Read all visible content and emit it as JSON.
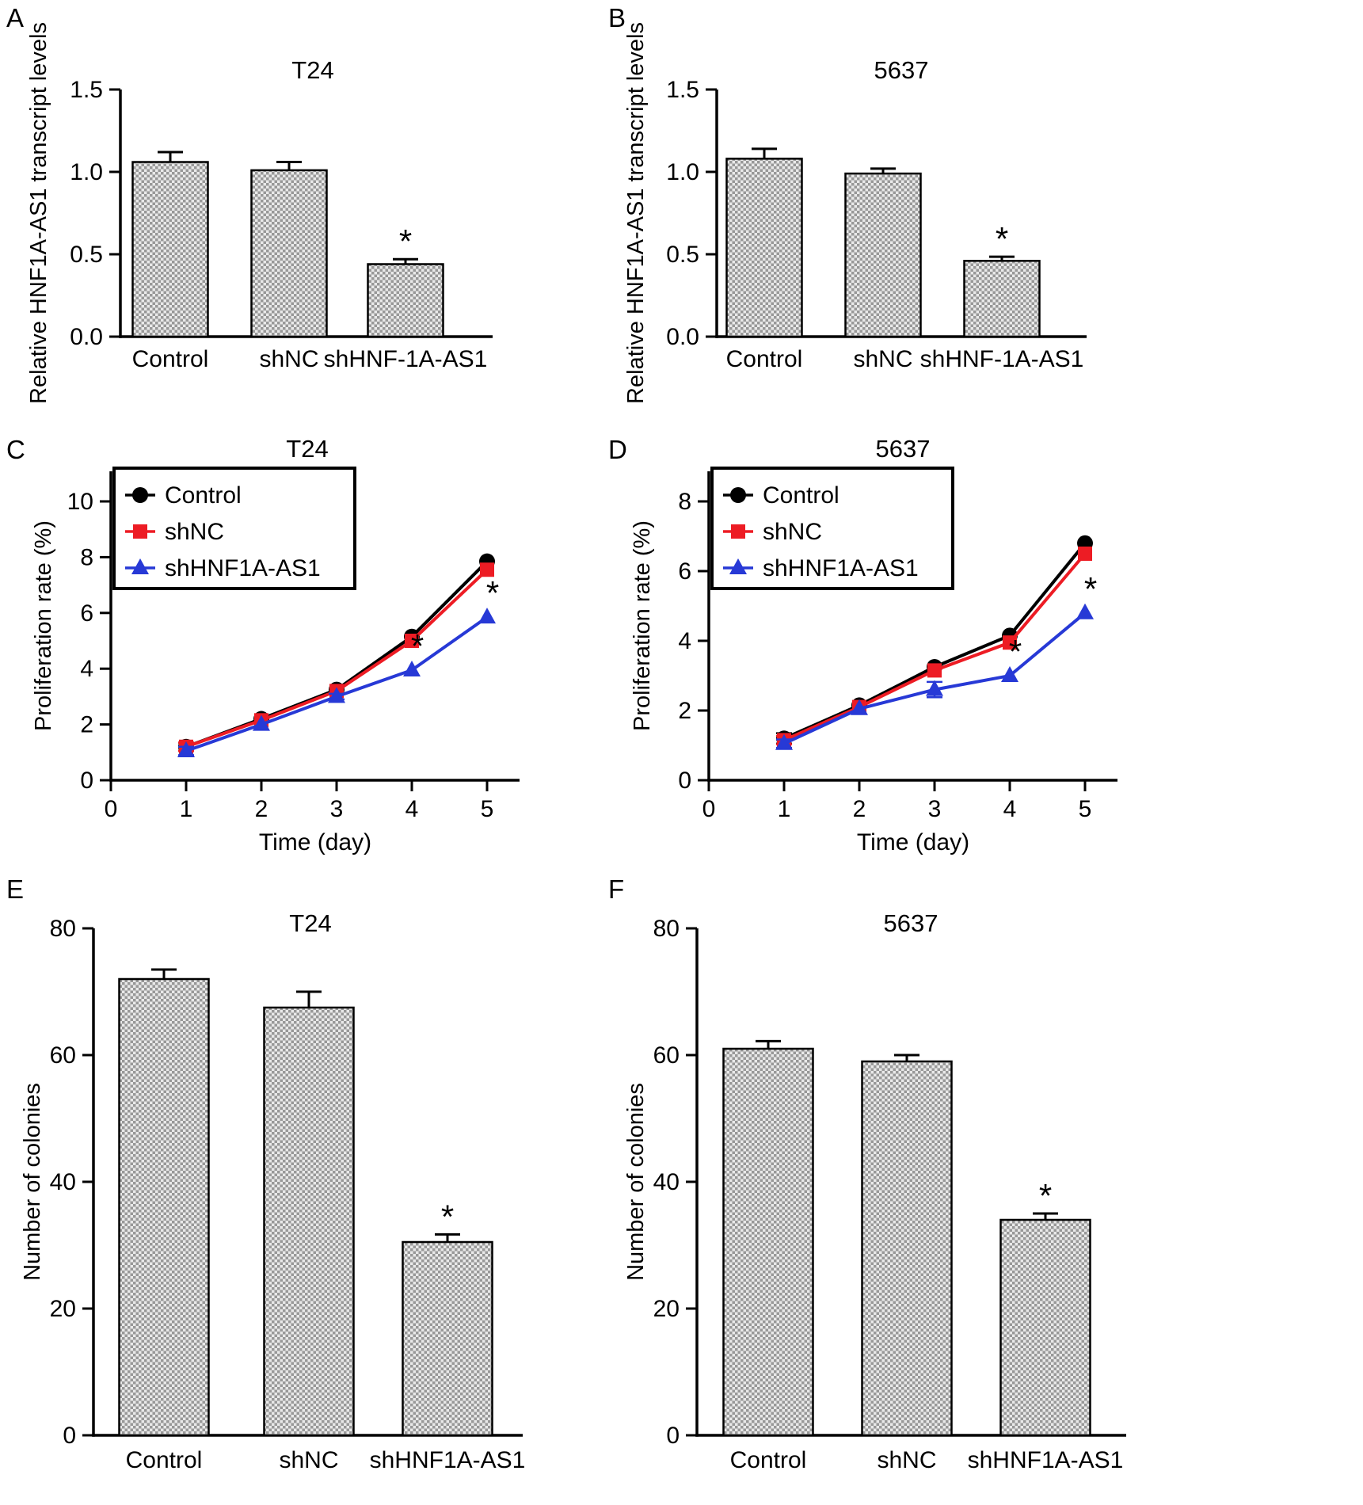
{
  "colors": {
    "axis": "#000000",
    "control_black": "#000000",
    "shnc_red": "#ed1c24",
    "shhnf_blue": "#2739d6",
    "bar_pattern_light": "#e9e9e9",
    "bar_pattern_dark": "#989898",
    "background": "#ffffff"
  },
  "panel_labels": [
    "A",
    "B",
    "C",
    "D",
    "E",
    "F"
  ],
  "chart_data": [
    {
      "type": "bar",
      "title": "T24",
      "ylabel": "Relative HNF1A-AS1 transcript levels",
      "categories": [
        "Control",
        "shNC",
        "shHNF-1A-AS1"
      ],
      "values": [
        1.06,
        1.01,
        0.44
      ],
      "errors": [
        0.06,
        0.05,
        0.03
      ],
      "significant": [
        false,
        false,
        true
      ],
      "ylim": [
        0,
        1.5
      ],
      "yticks": [
        0,
        0.5,
        1,
        1.5
      ],
      "ytick_labels": [
        "0.0",
        "0.5",
        "1.0",
        "1.5"
      ]
    },
    {
      "type": "bar",
      "title": "5637",
      "ylabel": "Relative HNF1A-AS1 transcript levels",
      "categories": [
        "Control",
        "shNC",
        "shHNF-1A-AS1"
      ],
      "values": [
        1.08,
        0.99,
        0.46
      ],
      "errors": [
        0.06,
        0.03,
        0.025
      ],
      "significant": [
        false,
        false,
        true
      ],
      "ylim": [
        0,
        1.5
      ],
      "yticks": [
        0,
        0.5,
        1,
        1.5
      ],
      "ytick_labels": [
        "0.0",
        "0.5",
        "1.0",
        "1.5"
      ]
    },
    {
      "type": "line",
      "title": "T24",
      "xlabel": "Time (day)",
      "ylabel": "Proliferation rate (%)",
      "x": [
        1,
        2,
        3,
        4,
        5
      ],
      "xticks": [
        0,
        1,
        2,
        3,
        4,
        5
      ],
      "ylim": [
        0,
        10
      ],
      "yticks": [
        0,
        2,
        4,
        6,
        8,
        10
      ],
      "legend_position": "top-left",
      "series": [
        {
          "name": "Control",
          "marker": "circle",
          "color": "#000000",
          "values": [
            1.2,
            2.2,
            3.25,
            5.15,
            7.85
          ],
          "errors": [
            0.15,
            0,
            0,
            0,
            0
          ],
          "significant": [
            false,
            false,
            false,
            false,
            false
          ]
        },
        {
          "name": "shNC",
          "marker": "square",
          "color": "#ed1c24",
          "values": [
            1.2,
            2.15,
            3.2,
            5.0,
            7.55
          ],
          "errors": [
            0.15,
            0,
            0,
            0,
            0
          ],
          "significant": [
            false,
            false,
            false,
            false,
            false
          ]
        },
        {
          "name": "shHNF1A-AS1",
          "marker": "triangle",
          "color": "#2739d6",
          "values": [
            1.05,
            2.0,
            3.0,
            3.95,
            5.85
          ],
          "errors": [
            0.15,
            0,
            0.1,
            0,
            0
          ],
          "significant": [
            false,
            false,
            false,
            true,
            true
          ]
        }
      ]
    },
    {
      "type": "line",
      "title": "5637",
      "xlabel": "Time (day)",
      "ylabel": "Proliferation rate (%)",
      "x": [
        1,
        2,
        3,
        4,
        5
      ],
      "xticks": [
        0,
        1,
        2,
        3,
        4,
        5
      ],
      "ylim": [
        0,
        8
      ],
      "yticks": [
        0,
        2,
        4,
        6,
        8
      ],
      "legend_position": "top-left",
      "series": [
        {
          "name": "Control",
          "marker": "circle",
          "color": "#000000",
          "values": [
            1.2,
            2.15,
            3.25,
            4.15,
            6.8
          ],
          "errors": [
            0.15,
            0,
            0,
            0,
            0
          ],
          "significant": [
            false,
            false,
            false,
            false,
            false
          ]
        },
        {
          "name": "shNC",
          "marker": "square",
          "color": "#ed1c24",
          "values": [
            1.15,
            2.1,
            3.15,
            3.95,
            6.5
          ],
          "errors": [
            0.12,
            0,
            0,
            0,
            0
          ],
          "significant": [
            false,
            false,
            false,
            false,
            false
          ]
        },
        {
          "name": "shHNF1A-AS1",
          "marker": "triangle",
          "color": "#2739d6",
          "values": [
            1.05,
            2.05,
            2.6,
            3.0,
            4.8
          ],
          "errors": [
            0.12,
            0,
            0.22,
            0,
            0
          ],
          "significant": [
            false,
            false,
            false,
            true,
            true
          ]
        }
      ]
    },
    {
      "type": "bar",
      "title": "T24",
      "ylabel": "Number of colonies",
      "categories": [
        "Control",
        "shNC",
        "shHNF1A-AS1"
      ],
      "values": [
        72,
        67.5,
        30.5
      ],
      "errors": [
        1.5,
        2.5,
        1.2
      ],
      "significant": [
        false,
        false,
        true
      ],
      "ylim": [
        0,
        80
      ],
      "yticks": [
        0,
        20,
        40,
        60,
        80
      ],
      "ytick_labels": [
        "0",
        "20",
        "40",
        "60",
        "80"
      ]
    },
    {
      "type": "bar",
      "title": "5637",
      "ylabel": "Number of colonies",
      "categories": [
        "Control",
        "shNC",
        "shHNF1A-AS1"
      ],
      "values": [
        61,
        59,
        34
      ],
      "errors": [
        1.2,
        1.0,
        1.0
      ],
      "significant": [
        false,
        false,
        true
      ],
      "ylim": [
        0,
        80
      ],
      "yticks": [
        0,
        20,
        40,
        60,
        80
      ],
      "ytick_labels": [
        "0",
        "20",
        "40",
        "60",
        "80"
      ]
    }
  ]
}
